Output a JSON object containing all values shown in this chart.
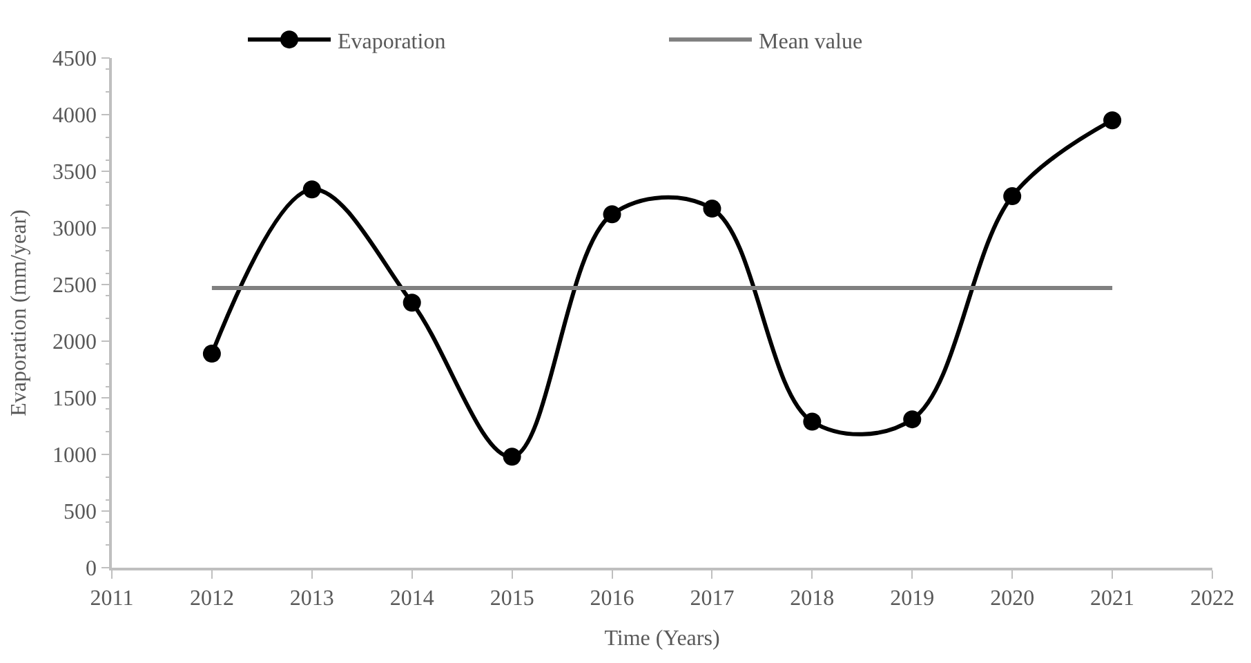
{
  "chart_data": {
    "type": "line",
    "xlabel": "Time (Years)",
    "ylabel": "Evaporation (mm/year)",
    "x": [
      2012,
      2013,
      2014,
      2015,
      2016,
      2017,
      2018,
      2019,
      2020,
      2021
    ],
    "series": [
      {
        "name": "Evaporation",
        "color": "#000000",
        "marker": "circle",
        "values": [
          1890,
          3340,
          2340,
          980,
          3120,
          3170,
          1290,
          1310,
          3280,
          3950
        ]
      },
      {
        "name": "Mean value",
        "color": "#808080",
        "marker": "none",
        "x": [
          2012,
          2021
        ],
        "values": [
          2470,
          2470
        ]
      }
    ],
    "xlim": [
      2011,
      2022
    ],
    "xticks": [
      2011,
      2012,
      2013,
      2014,
      2015,
      2016,
      2017,
      2018,
      2019,
      2020,
      2021,
      2022
    ],
    "ylim": [
      0,
      4500
    ],
    "yticks": [
      0,
      500,
      1000,
      1500,
      2000,
      2500,
      3000,
      3500,
      4000,
      4500
    ],
    "legend": "top"
  }
}
